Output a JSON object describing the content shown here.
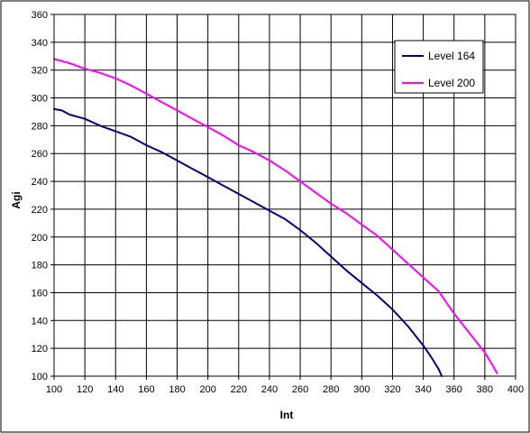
{
  "chart_data": {
    "type": "line",
    "title": "",
    "xlabel": "Int",
    "ylabel": "Agi",
    "xlim": [
      100,
      400
    ],
    "ylim": [
      100,
      360
    ],
    "x_ticks": [
      100,
      120,
      140,
      160,
      180,
      200,
      220,
      240,
      260,
      280,
      300,
      320,
      340,
      360,
      380,
      400
    ],
    "y_ticks": [
      100,
      120,
      140,
      160,
      180,
      200,
      220,
      240,
      260,
      280,
      300,
      320,
      340,
      360
    ],
    "grid": true,
    "legend_position": "top-right",
    "series": [
      {
        "name": "Level 164",
        "color": "#000080",
        "points": [
          [
            100,
            292
          ],
          [
            105,
            291
          ],
          [
            110,
            288
          ],
          [
            120,
            285
          ],
          [
            130,
            280
          ],
          [
            140,
            276
          ],
          [
            150,
            272
          ],
          [
            160,
            266
          ],
          [
            170,
            261
          ],
          [
            180,
            255
          ],
          [
            190,
            249
          ],
          [
            200,
            243
          ],
          [
            210,
            237
          ],
          [
            220,
            231
          ],
          [
            230,
            225
          ],
          [
            240,
            219
          ],
          [
            250,
            213
          ],
          [
            260,
            205
          ],
          [
            270,
            196
          ],
          [
            280,
            186
          ],
          [
            290,
            176
          ],
          [
            300,
            167
          ],
          [
            310,
            158
          ],
          [
            320,
            148
          ],
          [
            330,
            136
          ],
          [
            340,
            122
          ],
          [
            345,
            114
          ],
          [
            350,
            105
          ],
          [
            352,
            100
          ]
        ]
      },
      {
        "name": "Level 200",
        "color": "#ff00ff",
        "points": [
          [
            100,
            328
          ],
          [
            110,
            325
          ],
          [
            120,
            321
          ],
          [
            130,
            318
          ],
          [
            140,
            314
          ],
          [
            150,
            309
          ],
          [
            160,
            303
          ],
          [
            170,
            297
          ],
          [
            180,
            291
          ],
          [
            190,
            285
          ],
          [
            200,
            279
          ],
          [
            210,
            273
          ],
          [
            220,
            266
          ],
          [
            230,
            261
          ],
          [
            240,
            255
          ],
          [
            250,
            248
          ],
          [
            260,
            240
          ],
          [
            270,
            232
          ],
          [
            280,
            224
          ],
          [
            290,
            217
          ],
          [
            300,
            209
          ],
          [
            310,
            201
          ],
          [
            320,
            191
          ],
          [
            330,
            181
          ],
          [
            340,
            171
          ],
          [
            350,
            161
          ],
          [
            360,
            145
          ],
          [
            370,
            131
          ],
          [
            380,
            117
          ],
          [
            385,
            108
          ],
          [
            388,
            102
          ]
        ]
      }
    ]
  }
}
